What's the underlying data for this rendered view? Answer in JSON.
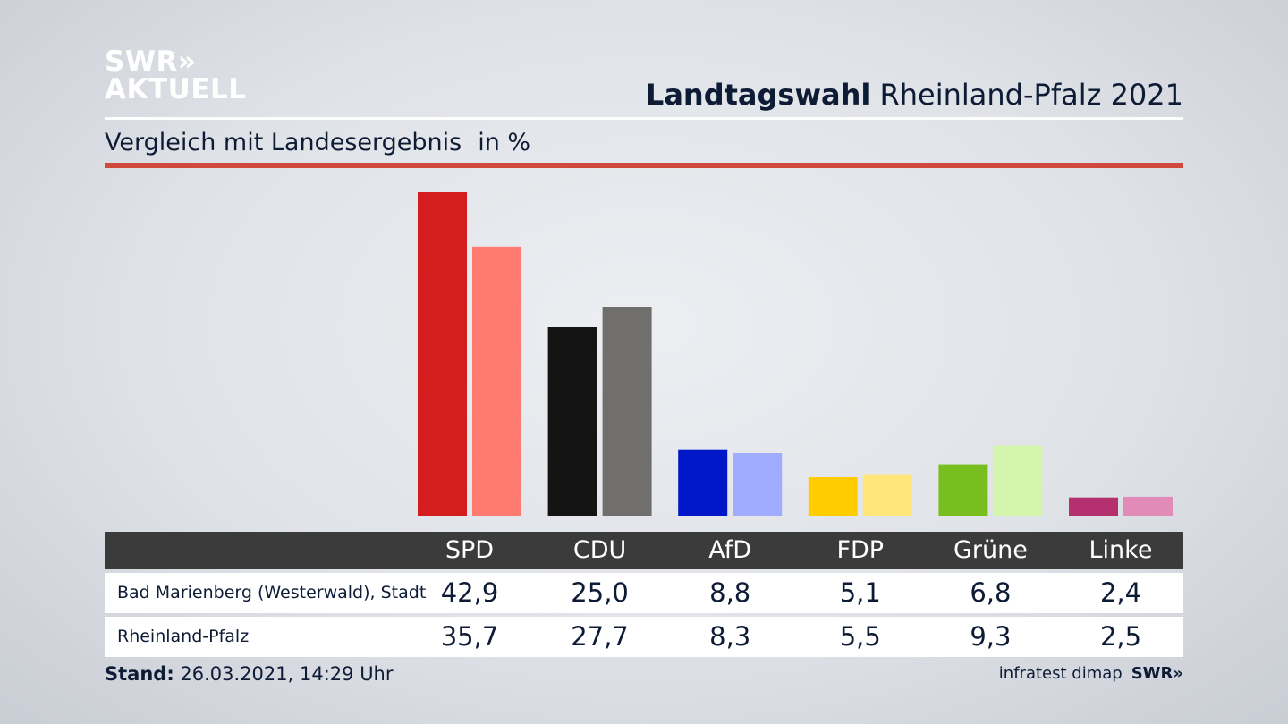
{
  "branding": {
    "logo_line1": "SWR»",
    "logo_line2": "AKTUELL",
    "footer_logo": "SWR»",
    "source": "infratest dimap"
  },
  "header": {
    "title_bold": "Landtagswahl",
    "title_rest": "Rheinland-Pfalz 2021",
    "subtitle": "Vergleich mit Landesergebnis",
    "unit": "in %"
  },
  "footer": {
    "stand_label": "Stand:",
    "stand_value": "26.03.2021, 14:29 Uhr"
  },
  "chart_data": {
    "type": "bar",
    "categories": [
      "SPD",
      "CDU",
      "AfD",
      "FDP",
      "Grüne",
      "Linke"
    ],
    "series": [
      {
        "name": "Bad Marienberg (Westerwald), Stadt",
        "values": [
          42.9,
          25.0,
          8.8,
          5.1,
          6.8,
          2.4
        ],
        "labels": [
          "42,9",
          "25,0",
          "8,8",
          "5,1",
          "6,8",
          "2,4"
        ],
        "colors": [
          "#d41e1e",
          "#141414",
          "#0018c8",
          "#ffcc00",
          "#78be1e",
          "#b5306f"
        ]
      },
      {
        "name": "Rheinland-Pfalz",
        "values": [
          35.7,
          27.7,
          8.3,
          5.5,
          9.3,
          2.5
        ],
        "labels": [
          "35,7",
          "27,7",
          "8,3",
          "5,5",
          "9,3",
          "2,5"
        ],
        "colors": [
          "#ff7a70",
          "#706f6e",
          "#a0acff",
          "#ffe57a",
          "#d3f6ac",
          "#e08bb8"
        ]
      }
    ],
    "ylim": [
      0,
      45
    ],
    "grid": false
  }
}
